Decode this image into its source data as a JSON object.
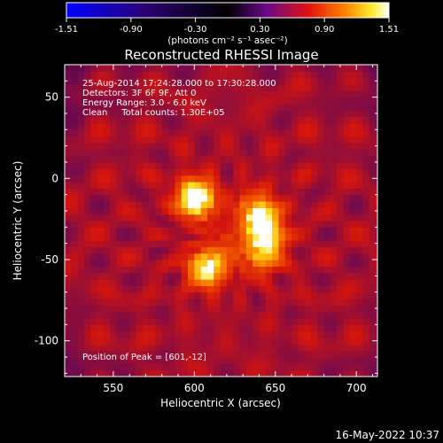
{
  "chart_data": {
    "type": "heatmap",
    "title": "Reconstructed RHESSI Image",
    "xlabel": "Heliocentric X (arcsec)",
    "ylabel": "Heliocentric Y (arcsec)",
    "xlim": [
      520,
      713
    ],
    "ylim": [
      -122,
      70
    ],
    "xticks": [
      550,
      600,
      650,
      700
    ],
    "yticks": [
      50,
      0,
      -50,
      -100
    ],
    "colorbar": {
      "min": -1.51,
      "max": 1.51,
      "ticks": [
        "-1.51",
        "-0.90",
        "-0.30",
        "0.30",
        "0.90",
        "1.51"
      ],
      "unit_label": "(photons cm⁻² s⁻¹ asec⁻²)",
      "colormap": "blue-black-purple-red-orange-yellow-white"
    },
    "annotations": [
      "25-Aug-2014 17:24:28.000 to 17:30:28.000",
      "Detectors: 3F 6F 9F, Att 0",
      "Energy Range: 3.0 - 6.0 keV",
      "Clean     Total counts: 1.30E+05"
    ],
    "peak_label": "Position of Peak = [601,-12]",
    "sources": [
      {
        "x": 601,
        "y": -12,
        "intensity": 1.51
      },
      {
        "x": 639,
        "y": -20,
        "intensity": 1.1
      },
      {
        "x": 645,
        "y": -33,
        "intensity": 1.05
      },
      {
        "x": 642,
        "y": -47,
        "intensity": 0.95
      },
      {
        "x": 608,
        "y": -55,
        "intensity": 1.3
      },
      {
        "x": 622,
        "y": -40,
        "intensity": 0.55
      }
    ],
    "background_level": 0.55
  },
  "footer": {
    "timestamp": "16-May-2022 10:37"
  }
}
